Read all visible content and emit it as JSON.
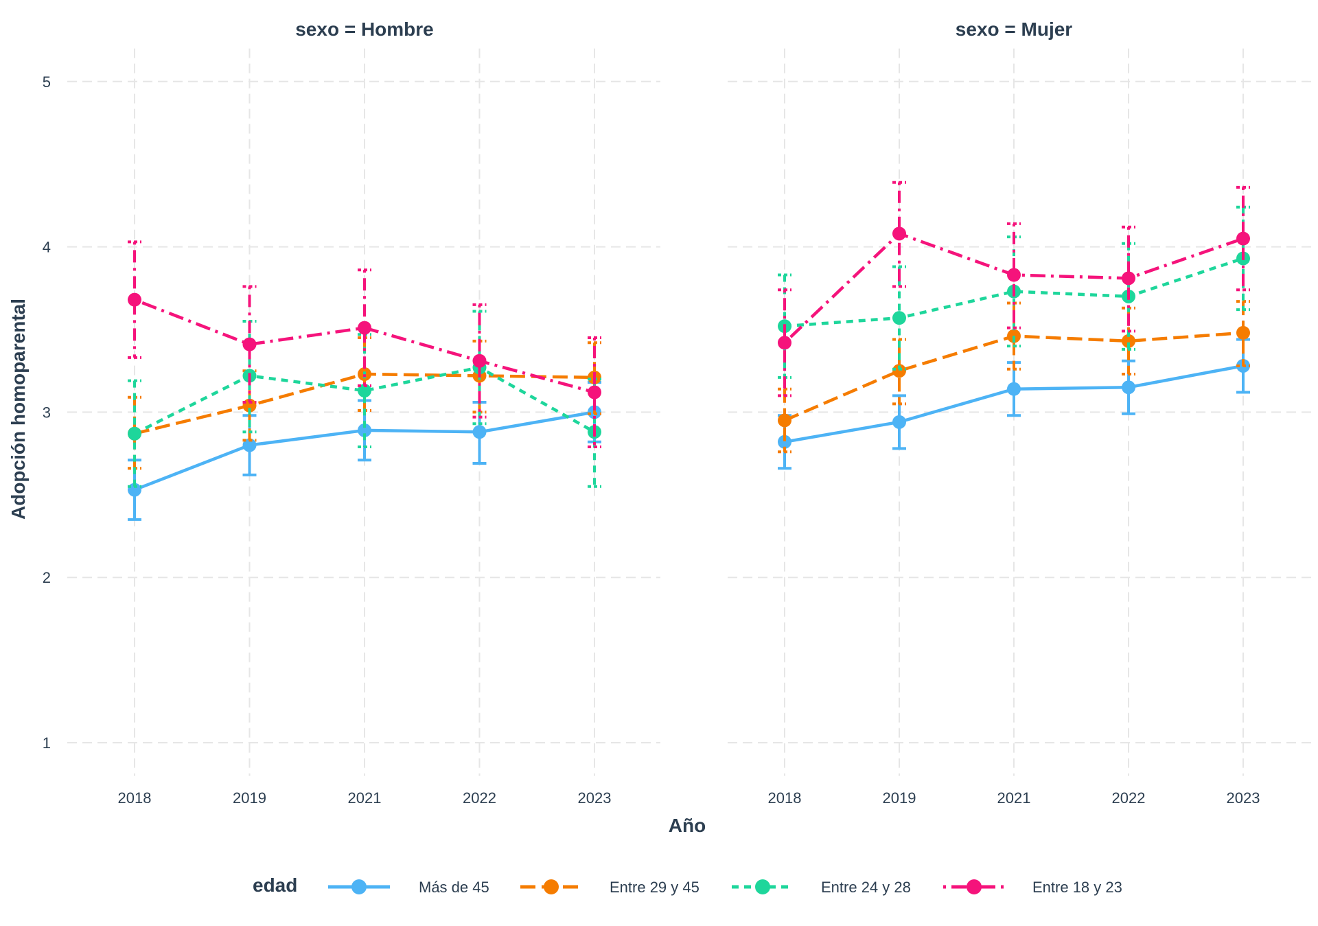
{
  "chart_data": {
    "type": "line",
    "y_label": "Adopción homoparental",
    "x_label": "Año",
    "categories": [
      "2018",
      "2019",
      "2021",
      "2022",
      "2023"
    ],
    "y_ticks": [
      1,
      2,
      3,
      4,
      5
    ],
    "ylim": [
      0.8,
      5.2
    ],
    "grid": true,
    "legend_position": "bottom",
    "legend_title": "edad",
    "series_style": [
      {
        "name": "Más de 45",
        "color": "#4db3f5",
        "line": "solid"
      },
      {
        "name": "Entre 29 y 45",
        "color": "#f57c00",
        "line": "longdash"
      },
      {
        "name": "Entre 24 y 28",
        "color": "#1ed69b",
        "line": "dashed"
      },
      {
        "name": "Entre 18 y 23",
        "color": "#f5137b",
        "line": "dotdash"
      }
    ],
    "panels": [
      {
        "title": "sexo = Hombre",
        "series": [
          {
            "name": "Más de 45",
            "values": [
              2.53,
              2.8,
              2.89,
              2.88,
              3.0
            ],
            "lower": [
              2.35,
              2.62,
              2.71,
              2.69,
              2.82
            ],
            "upper": [
              2.71,
              2.98,
              3.07,
              3.06,
              3.18
            ]
          },
          {
            "name": "Entre 29 y 45",
            "values": [
              2.87,
              3.04,
              3.23,
              3.22,
              3.21
            ],
            "lower": [
              2.66,
              2.83,
              3.01,
              3.0,
              2.99
            ],
            "upper": [
              3.09,
              3.25,
              3.45,
              3.43,
              3.42
            ]
          },
          {
            "name": "Entre 24 y 28",
            "values": [
              2.87,
              3.22,
              3.13,
              3.27,
              2.88
            ],
            "lower": [
              2.55,
              2.88,
              2.79,
              2.93,
              2.55
            ],
            "upper": [
              3.19,
              3.55,
              3.47,
              3.61,
              3.2
            ]
          },
          {
            "name": "Entre 18 y 23",
            "values": [
              3.68,
              3.41,
              3.51,
              3.31,
              3.12
            ],
            "lower": [
              3.33,
              3.06,
              3.16,
              2.97,
              2.79
            ],
            "upper": [
              4.03,
              3.76,
              3.86,
              3.65,
              3.45
            ]
          }
        ]
      },
      {
        "title": "sexo = Mujer",
        "series": [
          {
            "name": "Más de 45",
            "values": [
              2.82,
              2.94,
              3.14,
              3.15,
              3.28
            ],
            "lower": [
              2.66,
              2.78,
              2.98,
              2.99,
              3.12
            ],
            "upper": [
              2.98,
              3.1,
              3.3,
              3.31,
              3.44
            ]
          },
          {
            "name": "Entre 29 y 45",
            "values": [
              2.95,
              3.25,
              3.46,
              3.43,
              3.48
            ],
            "lower": [
              2.76,
              3.05,
              3.26,
              3.23,
              3.28
            ],
            "upper": [
              3.14,
              3.44,
              3.66,
              3.63,
              3.67
            ]
          },
          {
            "name": "Entre 24 y 28",
            "values": [
              3.52,
              3.57,
              3.73,
              3.7,
              3.93
            ],
            "lower": [
              3.21,
              3.26,
              3.4,
              3.38,
              3.62
            ],
            "upper": [
              3.83,
              3.88,
              4.06,
              4.02,
              4.24
            ]
          },
          {
            "name": "Entre 18 y 23",
            "values": [
              3.42,
              4.08,
              3.83,
              3.81,
              4.05
            ],
            "lower": [
              3.1,
              3.76,
              3.51,
              3.49,
              3.74
            ],
            "upper": [
              3.74,
              4.39,
              4.14,
              4.12,
              4.36
            ]
          }
        ]
      }
    ]
  }
}
